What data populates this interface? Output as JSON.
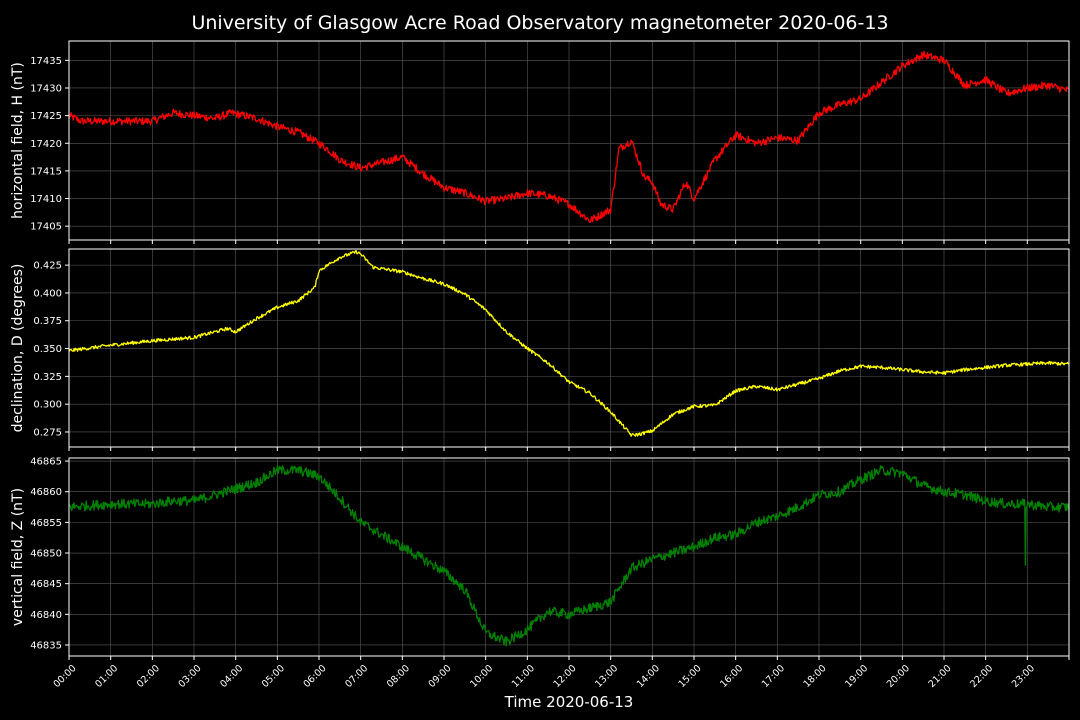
{
  "figure": {
    "title": "University of Glasgow Acre Road Observatory magnetometer 2020-06-13",
    "background": "#000000",
    "text_color": "#ffffff",
    "grid_color": "#5a5a5a"
  },
  "chart_data": [
    {
      "type": "line",
      "ylabel": "horizontal field, H (nT)",
      "color": "#ff0000",
      "xlim": [
        0,
        24
      ],
      "ylim": [
        17402.5,
        17438.5
      ],
      "yticks": [
        17405,
        17410,
        17415,
        17420,
        17425,
        17430,
        17435
      ],
      "grid": true,
      "noise": 0.7,
      "x": [
        0,
        0.3,
        1,
        2,
        2.5,
        3,
        3.5,
        3.9,
        4.5,
        5,
        5.5,
        6,
        6.2,
        6.5,
        7,
        7.5,
        8,
        8.5,
        9,
        9.5,
        10,
        10.5,
        11,
        11.5,
        12,
        12.5,
        13,
        13.2,
        13.5,
        13.8,
        14,
        14.2,
        14.5,
        14.8,
        15,
        15.5,
        16,
        16.5,
        17,
        17.5,
        18,
        18.5,
        19,
        19.5,
        20,
        20.5,
        21,
        21.5,
        22,
        22.5,
        23,
        23.5,
        24
      ],
      "y": [
        17425,
        17424,
        17424,
        17424,
        17425.5,
        17425,
        17424.5,
        17425.5,
        17424.5,
        17423,
        17422,
        17420,
        17419,
        17417,
        17415.5,
        17416.5,
        17417.5,
        17414.5,
        17412,
        17411,
        17409.5,
        17410,
        17411,
        17410.5,
        17409,
        17406,
        17408,
        17419,
        17420.5,
        17414,
        17413,
        17409,
        17408,
        17413,
        17410,
        17417,
        17421.5,
        17420,
        17421,
        17420.5,
        17425.5,
        17427,
        17428,
        17431,
        17434,
        17436,
        17435,
        17430.5,
        17431.5,
        17429,
        17430,
        17430.5,
        17429.5
      ]
    },
    {
      "type": "line",
      "ylabel": "declination, D (degrees)",
      "color": "#ffff00",
      "xlim": [
        0,
        24
      ],
      "ylim": [
        0.2615,
        0.4395
      ],
      "yticks": [
        0.275,
        0.3,
        0.325,
        0.35,
        0.375,
        0.4,
        0.425
      ],
      "grid": true,
      "noise": 0.0015,
      "x": [
        0,
        1,
        2,
        3,
        3.8,
        4,
        4.5,
        5,
        5.5,
        5.9,
        6,
        6.5,
        6.9,
        7,
        7.3,
        8,
        8.5,
        9,
        9.5,
        10,
        10.5,
        11,
        11.5,
        12,
        12.5,
        13,
        13.5,
        13.7,
        14,
        14.5,
        15,
        15.5,
        16,
        16.5,
        17,
        17.5,
        18,
        18.5,
        19,
        19.5,
        20,
        20.5,
        21,
        21.5,
        22,
        22.5,
        23,
        23.5,
        24
      ],
      "y": [
        0.348,
        0.353,
        0.357,
        0.36,
        0.368,
        0.365,
        0.377,
        0.387,
        0.393,
        0.405,
        0.42,
        0.432,
        0.437,
        0.435,
        0.423,
        0.419,
        0.413,
        0.408,
        0.399,
        0.385,
        0.365,
        0.35,
        0.337,
        0.32,
        0.31,
        0.293,
        0.272,
        0.273,
        0.276,
        0.291,
        0.298,
        0.299,
        0.312,
        0.316,
        0.313,
        0.318,
        0.323,
        0.33,
        0.334,
        0.333,
        0.331,
        0.329,
        0.328,
        0.331,
        0.333,
        0.335,
        0.336,
        0.337,
        0.336
      ]
    },
    {
      "type": "line",
      "ylabel": "vertical field, Z (nT)",
      "color": "#008000",
      "xlim": [
        0,
        24
      ],
      "ylim": [
        46833.2,
        46865.5
      ],
      "yticks": [
        46835,
        46840,
        46845,
        46850,
        46855,
        46860,
        46865
      ],
      "grid": true,
      "noise": 0.8,
      "spike": {
        "x": 22.95,
        "y": 46848
      },
      "x": [
        0,
        1,
        2,
        2.5,
        3,
        3.5,
        4,
        4.5,
        5,
        5.5,
        6,
        6.5,
        7,
        7.5,
        8,
        8.5,
        9,
        9.5,
        10,
        10.5,
        11,
        11.5,
        12,
        12.5,
        13,
        13.5,
        14,
        14.5,
        15,
        15.5,
        16,
        16.5,
        17,
        17.5,
        18,
        18.5,
        19,
        19.5,
        20,
        20.5,
        21,
        21.5,
        22,
        22.5,
        23,
        23.5,
        24
      ],
      "y": [
        46857.5,
        46858,
        46858,
        46858.5,
        46858.5,
        46859.5,
        46860.5,
        46861.5,
        46863.5,
        46863.5,
        46862.5,
        46859,
        46855,
        46853,
        46851,
        46849,
        46847,
        46844,
        46837,
        46835.5,
        46837.5,
        46840.5,
        46840,
        46841,
        46842,
        46847.5,
        46849,
        46850,
        46851,
        46852.5,
        46853,
        46855,
        46856,
        46857.5,
        46859.5,
        46860,
        46862,
        46863.5,
        46863,
        46861,
        46860,
        46859.5,
        46858.5,
        46858,
        46858,
        46857.5,
        46857.5
      ]
    }
  ],
  "x_axis": {
    "xlabel": "Time 2020-06-13",
    "tick_labels": [
      "00:00",
      "01:00",
      "02:00",
      "03:00",
      "04:00",
      "05:00",
      "06:00",
      "07:00",
      "08:00",
      "09:00",
      "10:00",
      "11:00",
      "12:00",
      "13:00",
      "14:00",
      "15:00",
      "16:00",
      "17:00",
      "18:00",
      "19:00",
      "20:00",
      "21:00",
      "22:00",
      "23:00"
    ]
  }
}
